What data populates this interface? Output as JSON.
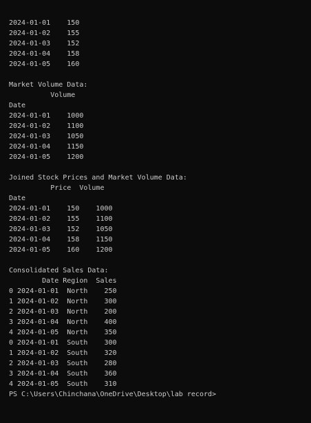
{
  "terminal": {
    "lines": [
      "2024-01-01    150",
      "2024-01-02    155",
      "2024-01-03    152",
      "2024-01-04    158",
      "2024-01-05    160",
      "",
      "Market Volume Data:",
      "          Volume",
      "Date",
      "2024-01-01    1000",
      "2024-01-02    1100",
      "2024-01-03    1050",
      "2024-01-04    1150",
      "2024-01-05    1200",
      "",
      "Joined Stock Prices and Market Volume Data:",
      "          Price  Volume",
      "Date",
      "2024-01-01    150    1000",
      "2024-01-02    155    1100",
      "2024-01-03    152    1050",
      "2024-01-04    158    1150",
      "2024-01-05    160    1200",
      "",
      "Consolidated Sales Data:",
      "        Date Region  Sales",
      "0 2024-01-01  North    250",
      "1 2024-01-02  North    300",
      "2 2024-01-03  North    200",
      "3 2024-01-04  North    400",
      "4 2024-01-05  North    350",
      "0 2024-01-01  South    300",
      "1 2024-01-02  South    320",
      "2 2024-01-03  South    280",
      "3 2024-01-04  South    360",
      "4 2024-01-05  South    310"
    ],
    "prompt": "PS C:\\Users\\Chinchana\\OneDrive\\Desktop\\lab record>"
  }
}
